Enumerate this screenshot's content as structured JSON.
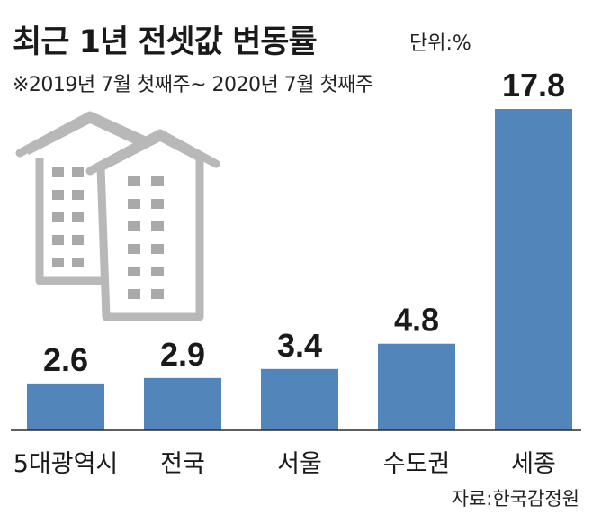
{
  "header": {
    "title": "최근 1년 전셋값 변동률",
    "unit": "단위:%",
    "period": "※2019년 7월 첫째주~ 2020년 7월 첫째주"
  },
  "footer": {
    "source": "자료:한국감정원"
  },
  "colors": {
    "bar": "#5286ba",
    "building_outline": "#b8b8b8",
    "building_window": "#a9a9a9"
  },
  "chart_data": {
    "type": "bar",
    "title": "최근 1년 전셋값 변동률",
    "xlabel": "",
    "ylabel": "",
    "unit": "%",
    "categories": [
      "5대광역시",
      "전국",
      "서울",
      "수도권",
      "세종"
    ],
    "values": [
      2.6,
      2.9,
      3.4,
      4.8,
      17.8
    ],
    "value_labels": [
      "2.6",
      "2.9",
      "3.4",
      "4.8",
      "17.8"
    ],
    "ylim": [
      0,
      17.8
    ],
    "grid": false,
    "legend": "none"
  }
}
